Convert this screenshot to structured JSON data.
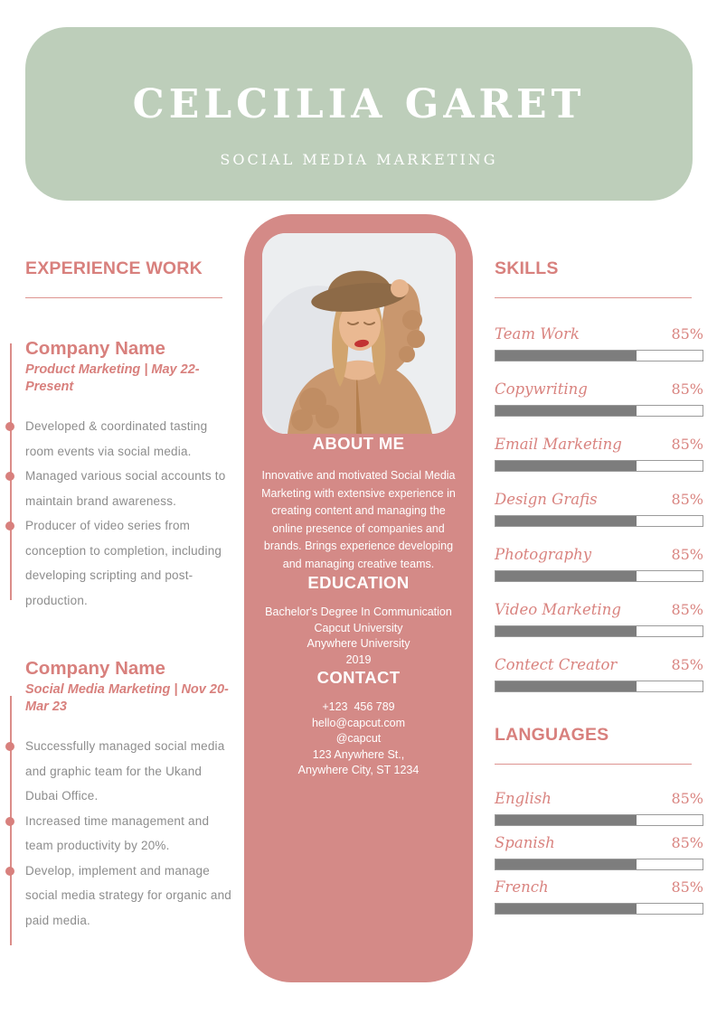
{
  "colors": {
    "banner_green": "#bdceba",
    "panel_pink": "#d48a87",
    "accent_pink": "#d8807d",
    "divider_pink": "#dd9490",
    "body_gray": "#8d8d8d",
    "bar_fill_gray": "#7d7d7d",
    "bar_border_gray": "#9b9b9b",
    "white": "#ffffff"
  },
  "header": {
    "name": "CELCILIA GARET",
    "subtitle": "SOCIAL MEDIA MARKETING"
  },
  "experience": {
    "title": "EXPERIENCE WORK",
    "jobs": [
      {
        "company": "Company Name",
        "meta": "Product Marketing | May 22-Present",
        "bullets": [
          "Developed & coordinated tasting room events via social media.",
          "Managed various social accounts to maintain brand awareness.",
          "Producer of video series from conception to completion, including developing scripting and post-production."
        ]
      },
      {
        "company": "Company Name",
        "meta": "Social Media Marketing | Nov 20-Mar 23",
        "bullets": [
          "Successfully managed social media and graphic team for the Ukand Dubai Office.",
          "Increased time management and team productivity by 20%.",
          "Develop, implement and manage social media strategy for organic and paid media."
        ]
      }
    ]
  },
  "profile": {
    "photo_description": "woman-in-brown-hat-and-knit-cardigan-photo",
    "about": {
      "title": "ABOUT ME",
      "text": "Innovative and motivated Social Media Marketing with extensive experience in creating content and managing the online presence of companies and brands. Brings experience developing and managing creative teams."
    },
    "education": {
      "title": "EDUCATION",
      "lines": [
        "Bachelor's Degree In Communication",
        "Capcut University",
        "Anywhere University",
        "2019"
      ]
    },
    "contact": {
      "title": "CONTACT",
      "lines": [
        "+123  456 789",
        "hello@capcut.com",
        "@capcut",
        "123 Anywhere St.,",
        "Anywhere City, ST 1234"
      ]
    }
  },
  "skills": {
    "title": "SKILLS",
    "items": [
      {
        "label": "Team Work",
        "percent": "85%",
        "fill": 68
      },
      {
        "label": "Copywriting",
        "percent": "85%",
        "fill": 68
      },
      {
        "label": "Email Marketing",
        "percent": "85%",
        "fill": 68
      },
      {
        "label": "Design Grafis",
        "percent": "85%",
        "fill": 68
      },
      {
        "label": "Photography",
        "percent": "85%",
        "fill": 68
      },
      {
        "label": "Video Marketing",
        "percent": "85%",
        "fill": 68
      },
      {
        "label": "Contect Creator",
        "percent": "85%",
        "fill": 68
      }
    ]
  },
  "languages": {
    "title": "LANGUAGES",
    "items": [
      {
        "label": "English",
        "percent": "85%",
        "fill": 68
      },
      {
        "label": "Spanish",
        "percent": "85%",
        "fill": 68
      },
      {
        "label": "French",
        "percent": "85%",
        "fill": 68
      }
    ]
  }
}
